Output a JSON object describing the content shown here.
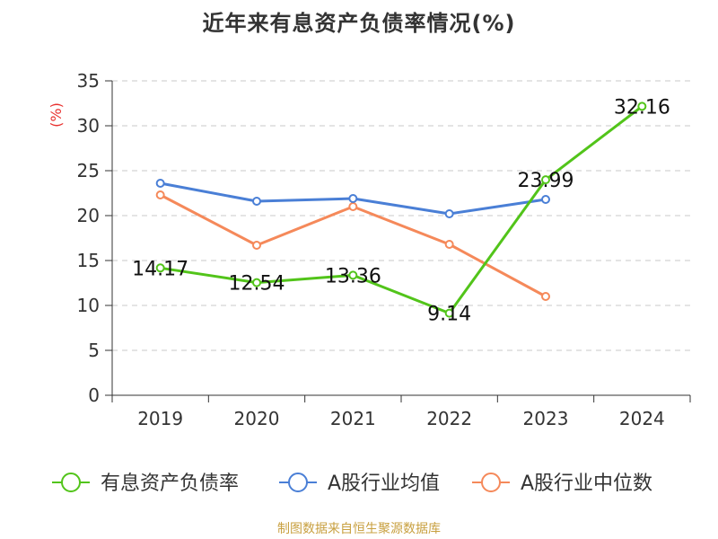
{
  "title": "近年来有息资产负债率情况(%)",
  "source": "制图数据来自恒生聚源数据库",
  "chart_data": {
    "type": "line",
    "title": "近年来有息资产负债率情况(%)",
    "ylabel": "(%)",
    "xlabel": "",
    "categories": [
      "2019",
      "2020",
      "2021",
      "2022",
      "2023",
      "2024"
    ],
    "ylim": [
      0,
      35
    ],
    "yticks": [
      "0",
      "5",
      "10",
      "15",
      "20",
      "25",
      "30",
      "35"
    ],
    "grid": "horizontal dashed",
    "legend_position": "bottom",
    "series": [
      {
        "name": "有息资产负债率",
        "color": "#52c41a",
        "values": [
          14.17,
          12.54,
          13.36,
          9.14,
          23.99,
          32.16
        ],
        "labels": [
          "14.17",
          "12.54",
          "13.36",
          "9.14",
          "23.99",
          "32.16"
        ]
      },
      {
        "name": "A股行业均值",
        "color": "#4a7fd6",
        "values": [
          23.6,
          21.6,
          21.9,
          20.2,
          21.8,
          null
        ]
      },
      {
        "name": "A股行业中位数",
        "color": "#f5895a",
        "values": [
          22.3,
          16.7,
          21.0,
          16.8,
          11.0,
          null
        ]
      }
    ]
  }
}
